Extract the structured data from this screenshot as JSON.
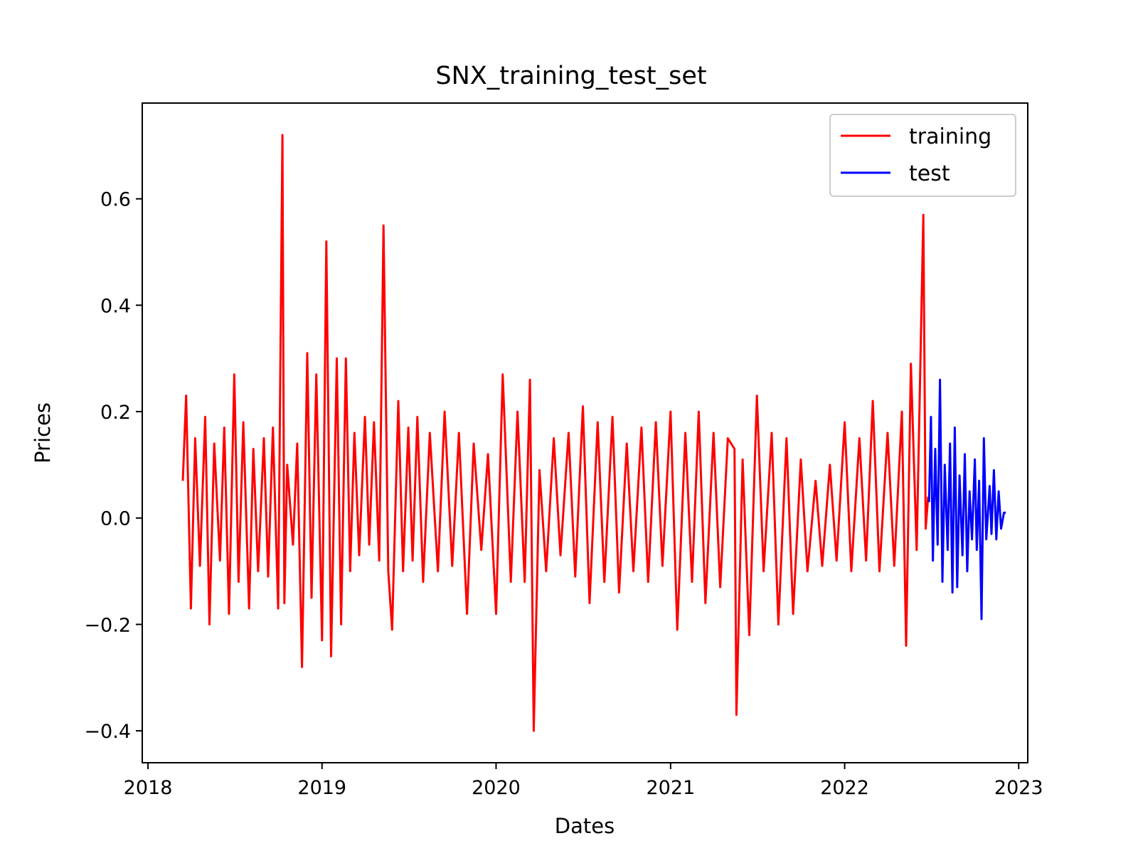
{
  "chart_data": {
    "type": "line",
    "title": "SNX_training_test_set",
    "xlabel": "Dates",
    "ylabel": "Prices",
    "xlim": [
      "2017-12-20",
      "2023-01-20"
    ],
    "ylim": [
      -0.46,
      0.78
    ],
    "x_ticks": [
      "2018",
      "2019",
      "2020",
      "2021",
      "2022",
      "2023"
    ],
    "y_ticks": [
      -0.4,
      -0.2,
      0.0,
      0.2,
      0.4,
      0.6
    ],
    "y_tick_labels": [
      "−0.4",
      "−0.2",
      "0.0",
      "0.2",
      "0.4",
      "0.6"
    ],
    "grid": false,
    "legend": "top-right",
    "colors": {
      "training": "#ff0000",
      "test": "#0000ff"
    },
    "series": [
      {
        "name": "training",
        "x": [
          "2018-03-15",
          "2018-03-22",
          "2018-04-01",
          "2018-04-10",
          "2018-04-20",
          "2018-05-01",
          "2018-05-10",
          "2018-05-20",
          "2018-06-01",
          "2018-06-10",
          "2018-06-20",
          "2018-07-01",
          "2018-07-10",
          "2018-07-20",
          "2018-08-01",
          "2018-08-10",
          "2018-08-20",
          "2018-09-01",
          "2018-09-10",
          "2018-09-20",
          "2018-10-01",
          "2018-10-10",
          "2018-10-14",
          "2018-10-20",
          "2018-11-01",
          "2018-11-10",
          "2018-11-20",
          "2018-12-01",
          "2018-12-10",
          "2018-12-20",
          "2019-01-01",
          "2019-01-10",
          "2019-01-20",
          "2019-02-01",
          "2019-02-10",
          "2019-02-20",
          "2019-03-01",
          "2019-03-10",
          "2019-03-20",
          "2019-04-01",
          "2019-04-10",
          "2019-04-20",
          "2019-05-01",
          "2019-05-10",
          "2019-05-20",
          "2019-05-28",
          "2019-06-10",
          "2019-06-20",
          "2019-07-01",
          "2019-07-10",
          "2019-07-20",
          "2019-08-01",
          "2019-08-15",
          "2019-09-01",
          "2019-09-15",
          "2019-10-01",
          "2019-10-15",
          "2019-11-01",
          "2019-11-15",
          "2019-12-01",
          "2019-12-15",
          "2020-01-01",
          "2020-01-15",
          "2020-02-01",
          "2020-02-15",
          "2020-03-01",
          "2020-03-12",
          "2020-03-20",
          "2020-04-01",
          "2020-04-15",
          "2020-05-01",
          "2020-05-15",
          "2020-06-01",
          "2020-06-15",
          "2020-07-01",
          "2020-07-15",
          "2020-08-01",
          "2020-08-15",
          "2020-09-01",
          "2020-09-15",
          "2020-10-01",
          "2020-10-15",
          "2020-11-01",
          "2020-11-15",
          "2020-12-01",
          "2020-12-15",
          "2021-01-01",
          "2021-01-15",
          "2021-02-01",
          "2021-02-15",
          "2021-03-01",
          "2021-03-15",
          "2021-04-01",
          "2021-04-15",
          "2021-05-01",
          "2021-05-15",
          "2021-05-19",
          "2021-06-01",
          "2021-06-15",
          "2021-07-01",
          "2021-07-15",
          "2021-08-01",
          "2021-08-15",
          "2021-09-01",
          "2021-09-15",
          "2021-10-01",
          "2021-10-15",
          "2021-11-01",
          "2021-11-15",
          "2021-12-01",
          "2021-12-15",
          "2022-01-01",
          "2022-01-15",
          "2022-02-01",
          "2022-02-15",
          "2022-03-01",
          "2022-03-15",
          "2022-04-01",
          "2022-04-15",
          "2022-05-01",
          "2022-05-10",
          "2022-05-20",
          "2022-06-01",
          "2022-06-15",
          "2022-06-20",
          "2022-06-25"
        ],
        "values": [
          0.07,
          0.23,
          -0.17,
          0.15,
          -0.09,
          0.19,
          -0.2,
          0.14,
          -0.08,
          0.17,
          -0.18,
          0.27,
          -0.12,
          0.18,
          -0.17,
          0.13,
          -0.1,
          0.15,
          -0.11,
          0.17,
          -0.17,
          0.72,
          -0.16,
          0.1,
          -0.05,
          0.14,
          -0.28,
          0.31,
          -0.15,
          0.27,
          -0.23,
          0.52,
          -0.26,
          0.3,
          -0.2,
          0.3,
          -0.1,
          0.16,
          -0.07,
          0.19,
          -0.05,
          0.18,
          -0.08,
          0.55,
          -0.1,
          -0.21,
          0.22,
          -0.1,
          0.17,
          -0.08,
          0.19,
          -0.12,
          0.16,
          -0.1,
          0.2,
          -0.09,
          0.16,
          -0.18,
          0.14,
          -0.06,
          0.12,
          -0.18,
          0.27,
          -0.12,
          0.2,
          -0.12,
          0.26,
          -0.4,
          0.09,
          -0.1,
          0.15,
          -0.07,
          0.16,
          -0.11,
          0.21,
          -0.16,
          0.18,
          -0.12,
          0.19,
          -0.14,
          0.14,
          -0.1,
          0.17,
          -0.12,
          0.18,
          -0.09,
          0.2,
          -0.21,
          0.16,
          -0.12,
          0.2,
          -0.16,
          0.16,
          -0.13,
          0.15,
          0.13,
          -0.37,
          0.11,
          -0.22,
          0.23,
          -0.1,
          0.16,
          -0.2,
          0.15,
          -0.18,
          0.11,
          -0.1,
          0.07,
          -0.09,
          0.1,
          -0.08,
          0.18,
          -0.1,
          0.15,
          -0.08,
          0.22,
          -0.1,
          0.16,
          -0.09,
          0.2,
          -0.24,
          0.29,
          -0.06,
          0.57,
          -0.02,
          0.04
        ]
      },
      {
        "name": "test",
        "x": [
          "2022-06-27",
          "2022-07-01",
          "2022-07-05",
          "2022-07-10",
          "2022-07-15",
          "2022-07-20",
          "2022-07-25",
          "2022-07-30",
          "2022-08-05",
          "2022-08-10",
          "2022-08-15",
          "2022-08-20",
          "2022-08-25",
          "2022-08-30",
          "2022-09-05",
          "2022-09-10",
          "2022-09-15",
          "2022-09-20",
          "2022-09-25",
          "2022-10-01",
          "2022-10-05",
          "2022-10-10",
          "2022-10-15",
          "2022-10-20",
          "2022-10-25",
          "2022-11-01",
          "2022-11-05",
          "2022-11-10",
          "2022-11-15",
          "2022-11-20",
          "2022-11-25",
          "2022-12-01",
          "2022-12-05"
        ],
        "values": [
          0.03,
          0.19,
          -0.08,
          0.13,
          -0.05,
          0.26,
          -0.12,
          0.1,
          -0.06,
          0.14,
          -0.14,
          0.17,
          -0.13,
          0.08,
          -0.07,
          0.12,
          -0.1,
          0.05,
          -0.04,
          0.11,
          -0.06,
          0.07,
          -0.19,
          0.15,
          -0.04,
          0.06,
          -0.03,
          0.09,
          -0.04,
          0.05,
          -0.02,
          0.01,
          0.01
        ]
      }
    ]
  }
}
